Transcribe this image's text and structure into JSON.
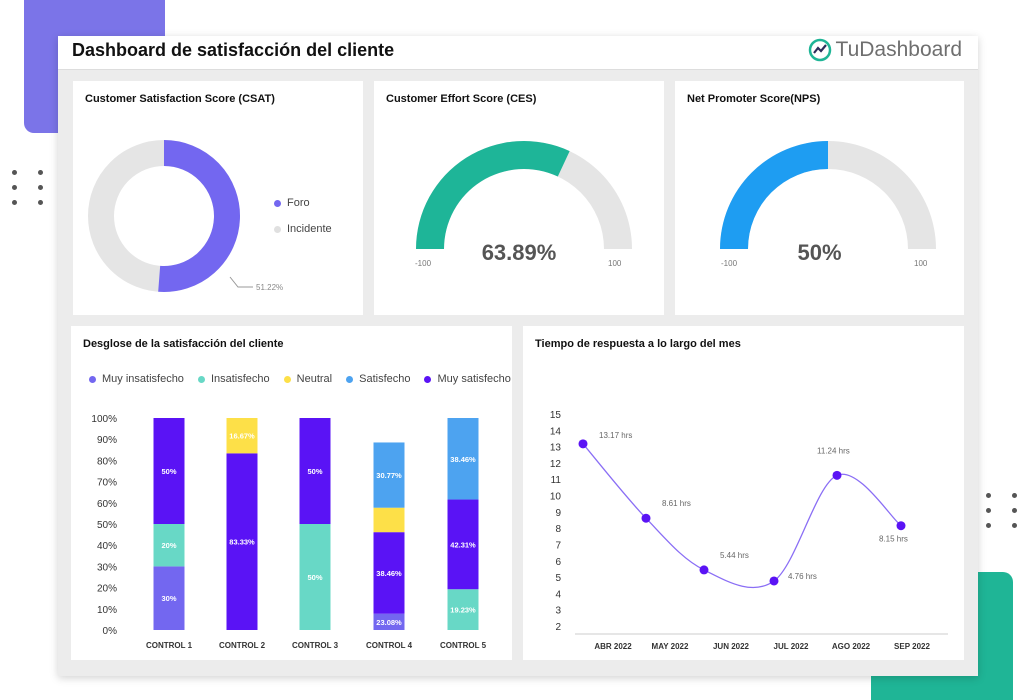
{
  "header": {
    "title": "Dashboard de satisfacción del cliente",
    "brand": "TuDashboard"
  },
  "csat": {
    "title": "Customer Satisfaction Score (CSAT)",
    "legend": [
      {
        "label": "Foro",
        "color": "#7367f0"
      },
      {
        "label": "Incidente",
        "color": "#e5e5e5"
      }
    ],
    "value_label": "51.22%",
    "foro_pct": 51.22
  },
  "ces": {
    "title": "Customer Effort Score (CES)",
    "value": "63.89%",
    "min": "-100",
    "max": "100",
    "fraction": 0.6389,
    "color": "#1eb598"
  },
  "nps": {
    "title": "Net Promoter Score(NPS)",
    "value": "50%",
    "min": "-100",
    "max": "100",
    "fraction": 0.5,
    "color": "#1e9df2"
  },
  "breakdown": {
    "title": "Desglose de la satisfacción del cliente",
    "legend": [
      {
        "label": "Muy insatisfecho",
        "color": "#7367f0"
      },
      {
        "label": "Insatisfecho",
        "color": "#68d8c6"
      },
      {
        "label": "Neutral",
        "color": "#fde048"
      },
      {
        "label": "Satisfecho",
        "color": "#4da3f0"
      },
      {
        "label": "Muy satisfecho",
        "color": "#5a13f5"
      }
    ]
  },
  "response": {
    "title": "Tiempo de respuesta a lo largo del mes"
  },
  "chart_data": [
    {
      "type": "bar",
      "stacked": true,
      "title": "Desglose de la satisfacción del cliente",
      "categories": [
        "CONTROL 1",
        "CONTROL 2",
        "CONTROL 3",
        "CONTROL 4",
        "CONTROL 5"
      ],
      "y_ticks": [
        "0%",
        "10%",
        "20%",
        "30%",
        "40%",
        "50%",
        "60%",
        "70%",
        "80%",
        "90%",
        "100%"
      ],
      "ylim": [
        0,
        100
      ],
      "series": [
        {
          "name": "Muy insatisfecho",
          "color": "#7367f0",
          "values": [
            30,
            0,
            0,
            7.69,
            0
          ],
          "labels": [
            "30%",
            "",
            "",
            "",
            ""
          ]
        },
        {
          "name": "Insatisfecho",
          "color": "#68d8c6",
          "values": [
            20,
            0,
            50,
            0,
            19.23
          ],
          "labels": [
            "20%",
            "",
            "50%",
            "",
            "19.23%"
          ]
        },
        {
          "name": "Muy satisfecho",
          "color": "#5a13f5",
          "values": [
            50,
            83.33,
            50,
            38.46,
            42.31
          ],
          "labels": [
            "50%",
            "83.33%",
            "50%",
            "38.46%",
            "42.31%"
          ]
        },
        {
          "name": "Neutral",
          "color": "#fde048",
          "values": [
            0,
            16.67,
            0,
            11.54,
            0
          ],
          "labels": [
            "",
            "16.67%",
            "",
            "",
            ""
          ]
        },
        {
          "name": "Satisfecho",
          "color": "#4da3f0",
          "values": [
            0,
            0,
            0,
            30.77,
            38.46
          ],
          "labels": [
            "",
            "",
            "",
            "30.77%",
            "38.46%"
          ]
        }
      ],
      "extra_labels": [
        {
          "category": "CONTROL 4",
          "label": "23.08%"
        }
      ]
    },
    {
      "type": "line",
      "title": "Tiempo de respuesta a lo largo del mes",
      "x": [
        "ABR 2022",
        "MAY 2022",
        "JUN 2022",
        "JUL 2022",
        "AGO 2022",
        "SEP 2022"
      ],
      "values": [
        13.17,
        8.61,
        5.44,
        4.76,
        11.24,
        8.15
      ],
      "labels": [
        "13.17 hrs",
        "8.61 hrs",
        "5.44 hrs",
        "4.76 hrs",
        "11.24 hrs",
        "8.15 hrs"
      ],
      "y_ticks": [
        "2",
        "3",
        "4",
        "5",
        "6",
        "7",
        "8",
        "9",
        "10",
        "11",
        "12",
        "13",
        "14",
        "15"
      ],
      "ylim": [
        2,
        15
      ],
      "color": "#5a13f5"
    }
  ]
}
